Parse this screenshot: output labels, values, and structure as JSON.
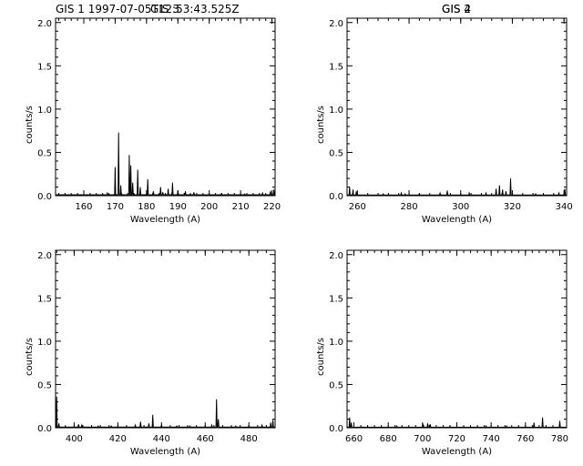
{
  "figure": {
    "background": "#ffffff",
    "line_color": "#000000"
  },
  "chart_data": [
    {
      "type": "line",
      "title": "GIS 1 1997-07-05T12:53:43.525Z",
      "xlabel": "Wavelength (A)",
      "ylabel": "counts/s",
      "xlim": [
        151,
        221
      ],
      "ylim": [
        0,
        2.05
      ],
      "xticks": [
        160,
        170,
        180,
        190,
        200,
        210,
        220
      ],
      "yticks": [
        "0.0",
        "0.5",
        "1.0",
        "1.5",
        "2.0"
      ],
      "baseline": 0.01,
      "peaks": [
        {
          "x": 167.5,
          "y": 0.03
        },
        {
          "x": 170.0,
          "y": 0.33
        },
        {
          "x": 171.1,
          "y": 0.73
        },
        {
          "x": 171.8,
          "y": 0.12
        },
        {
          "x": 174.5,
          "y": 0.47
        },
        {
          "x": 175.0,
          "y": 0.35
        },
        {
          "x": 175.6,
          "y": 0.15
        },
        {
          "x": 177.2,
          "y": 0.3
        },
        {
          "x": 178.0,
          "y": 0.1
        },
        {
          "x": 180.4,
          "y": 0.19
        },
        {
          "x": 182.2,
          "y": 0.05
        },
        {
          "x": 184.5,
          "y": 0.1
        },
        {
          "x": 185.2,
          "y": 0.04
        },
        {
          "x": 186.9,
          "y": 0.08
        },
        {
          "x": 188.3,
          "y": 0.15
        },
        {
          "x": 190.0,
          "y": 0.06
        },
        {
          "x": 192.4,
          "y": 0.05
        },
        {
          "x": 195.1,
          "y": 0.04
        },
        {
          "x": 203.8,
          "y": 0.02
        },
        {
          "x": 211.3,
          "y": 0.02
        },
        {
          "x": 217.0,
          "y": 0.03
        },
        {
          "x": 219.5,
          "y": 0.05
        },
        {
          "x": 220.6,
          "y": 0.07
        }
      ]
    },
    {
      "type": "line",
      "title": "GIS 2",
      "xlabel": "Wavelength (A)",
      "ylabel": "counts/s",
      "xlim": [
        256,
        341
      ],
      "ylim": [
        0,
        2.05
      ],
      "xticks": [
        260,
        280,
        300,
        320,
        340
      ],
      "yticks": [
        "0.0",
        "0.5",
        "1.0",
        "1.5",
        "2.0"
      ],
      "baseline": 0.008,
      "peaks": [
        {
          "x": 257.0,
          "y": 0.1
        },
        {
          "x": 258.3,
          "y": 0.07
        },
        {
          "x": 259.6,
          "y": 0.05
        },
        {
          "x": 270.0,
          "y": 0.02
        },
        {
          "x": 277.0,
          "y": 0.03
        },
        {
          "x": 278.5,
          "y": 0.02
        },
        {
          "x": 284.0,
          "y": 0.02
        },
        {
          "x": 292.0,
          "y": 0.03
        },
        {
          "x": 294.8,
          "y": 0.06
        },
        {
          "x": 303.3,
          "y": 0.03
        },
        {
          "x": 309.8,
          "y": 0.03
        },
        {
          "x": 313.7,
          "y": 0.08
        },
        {
          "x": 315.0,
          "y": 0.12
        },
        {
          "x": 316.2,
          "y": 0.07
        },
        {
          "x": 317.5,
          "y": 0.05
        },
        {
          "x": 319.3,
          "y": 0.2
        },
        {
          "x": 329.0,
          "y": 0.02
        },
        {
          "x": 338.0,
          "y": 0.03
        },
        {
          "x": 340.3,
          "y": 0.08
        }
      ]
    },
    {
      "type": "line",
      "title": "GIS 3",
      "xlabel": "Wavelength (A)",
      "ylabel": "counts/s",
      "xlim": [
        391.5,
        492
      ],
      "ylim": [
        0,
        2.05
      ],
      "xticks": [
        400,
        420,
        440,
        460,
        480
      ],
      "yticks": [
        "0.0",
        "0.5",
        "1.0",
        "1.5",
        "2.0"
      ],
      "baseline": 0.008,
      "peaks": [
        {
          "x": 392.0,
          "y": 0.36
        },
        {
          "x": 393.0,
          "y": 0.05
        },
        {
          "x": 402.0,
          "y": 0.04
        },
        {
          "x": 403.5,
          "y": 0.03
        },
        {
          "x": 411.0,
          "y": 0.02
        },
        {
          "x": 417.0,
          "y": 0.02
        },
        {
          "x": 428.0,
          "y": 0.03
        },
        {
          "x": 430.4,
          "y": 0.07
        },
        {
          "x": 434.2,
          "y": 0.05
        },
        {
          "x": 436.0,
          "y": 0.15
        },
        {
          "x": 440.0,
          "y": 0.03
        },
        {
          "x": 447.0,
          "y": 0.02
        },
        {
          "x": 453.0,
          "y": 0.02
        },
        {
          "x": 463.0,
          "y": 0.03
        },
        {
          "x": 465.2,
          "y": 0.33
        },
        {
          "x": 466.0,
          "y": 0.1
        },
        {
          "x": 474.0,
          "y": 0.02
        },
        {
          "x": 480.0,
          "y": 0.02
        },
        {
          "x": 486.0,
          "y": 0.03
        },
        {
          "x": 490.0,
          "y": 0.06
        },
        {
          "x": 491.0,
          "y": 0.09
        }
      ]
    },
    {
      "type": "line",
      "title": "GIS 4",
      "xlabel": "Wavelength (A)",
      "ylabel": "counts/s",
      "xlim": [
        656,
        784
      ],
      "ylim": [
        0,
        2.05
      ],
      "xticks": [
        660,
        680,
        700,
        720,
        740,
        760,
        780
      ],
      "yticks": [
        "0.0",
        "0.5",
        "1.0",
        "1.5",
        "2.0"
      ],
      "baseline": 0.006,
      "peaks": [
        {
          "x": 657.5,
          "y": 0.12
        },
        {
          "x": 658.5,
          "y": 0.06
        },
        {
          "x": 665.0,
          "y": 0.01
        },
        {
          "x": 685.0,
          "y": 0.02
        },
        {
          "x": 700.5,
          "y": 0.03
        },
        {
          "x": 703.0,
          "y": 0.05
        },
        {
          "x": 704.5,
          "y": 0.04
        },
        {
          "x": 716.0,
          "y": 0.02
        },
        {
          "x": 737.0,
          "y": 0.02
        },
        {
          "x": 749.0,
          "y": 0.02
        },
        {
          "x": 765.0,
          "y": 0.06
        },
        {
          "x": 770.0,
          "y": 0.12
        },
        {
          "x": 780.0,
          "y": 0.08
        }
      ]
    }
  ]
}
